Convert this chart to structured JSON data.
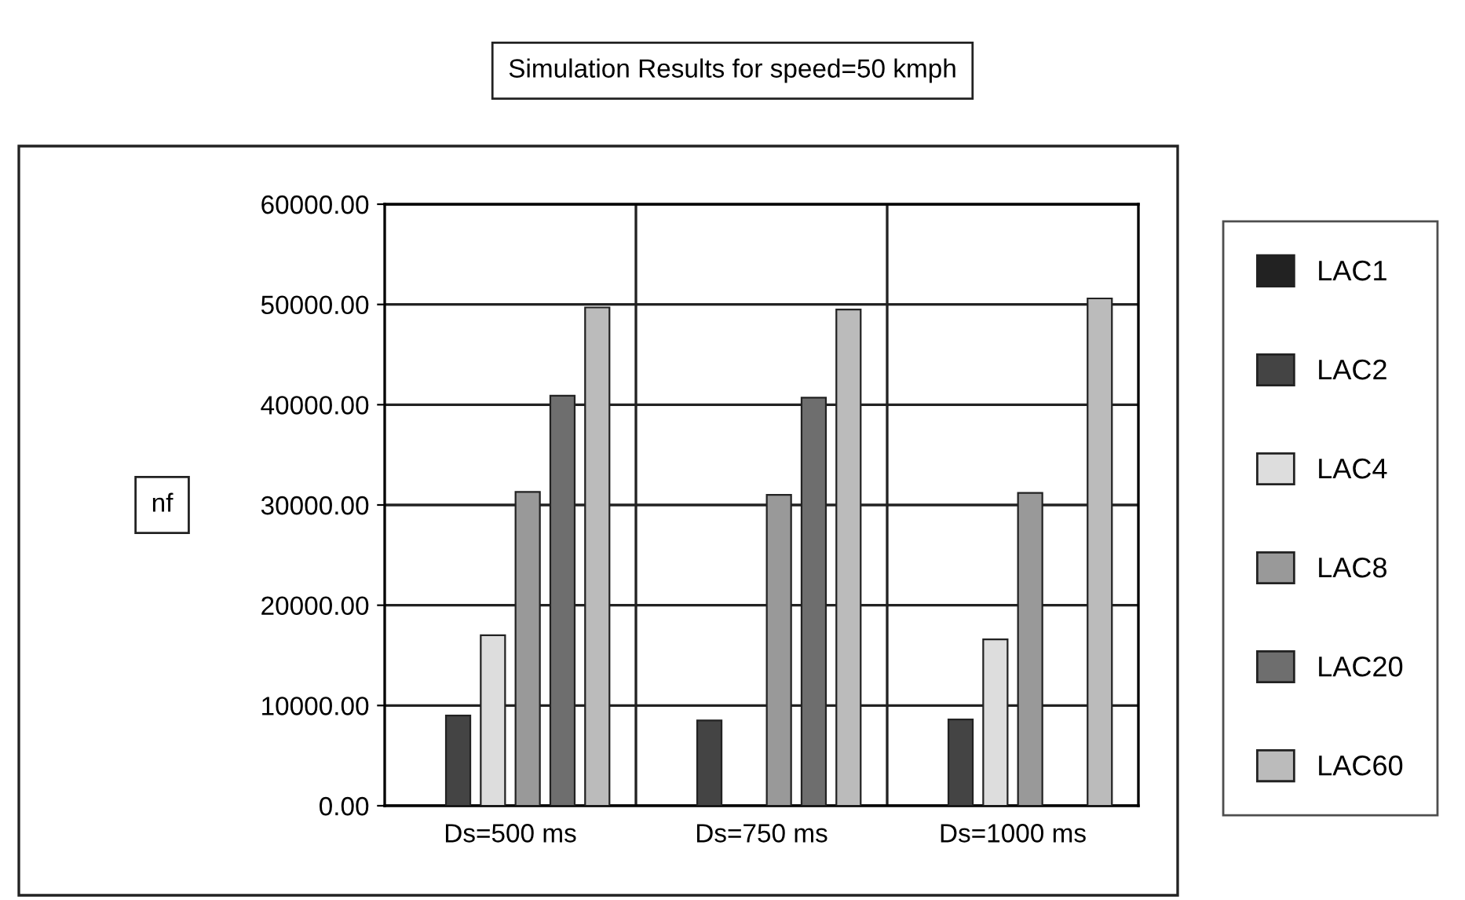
{
  "chart_data": {
    "type": "bar",
    "title": "Simulation Results for speed=50 kmph",
    "ylabel": "nf",
    "categories": [
      "Ds=500 ms",
      "Ds=750 ms",
      "Ds=1000 ms"
    ],
    "series": [
      {
        "name": "LAC1",
        "color": "#222222",
        "values": [
          null,
          null,
          null
        ]
      },
      {
        "name": "LAC2",
        "color": "#444444",
        "values": [
          9000,
          8500,
          8600
        ]
      },
      {
        "name": "LAC4",
        "color": "#dddddd",
        "values": [
          17000,
          null,
          16600
        ]
      },
      {
        "name": "LAC8",
        "color": "#999999",
        "values": [
          31300,
          31000,
          31200
        ]
      },
      {
        "name": "LAC20",
        "color": "#6e6e6e",
        "values": [
          40900,
          40700,
          null
        ]
      },
      {
        "name": "LAC60",
        "color": "#bbbbbb",
        "values": [
          49700,
          49500,
          50600
        ]
      }
    ],
    "ylim": [
      0,
      60000
    ],
    "yticks": [
      {
        "value": 0,
        "label": "0.00"
      },
      {
        "value": 10000,
        "label": "10000.00"
      },
      {
        "value": 20000,
        "label": "20000.00"
      },
      {
        "value": 30000,
        "label": "30000.00"
      },
      {
        "value": 40000,
        "label": "40000.00"
      },
      {
        "value": 50000,
        "label": "50000.00"
      },
      {
        "value": 60000,
        "label": "60000.00"
      }
    ],
    "grid": true,
    "legend": "right"
  }
}
